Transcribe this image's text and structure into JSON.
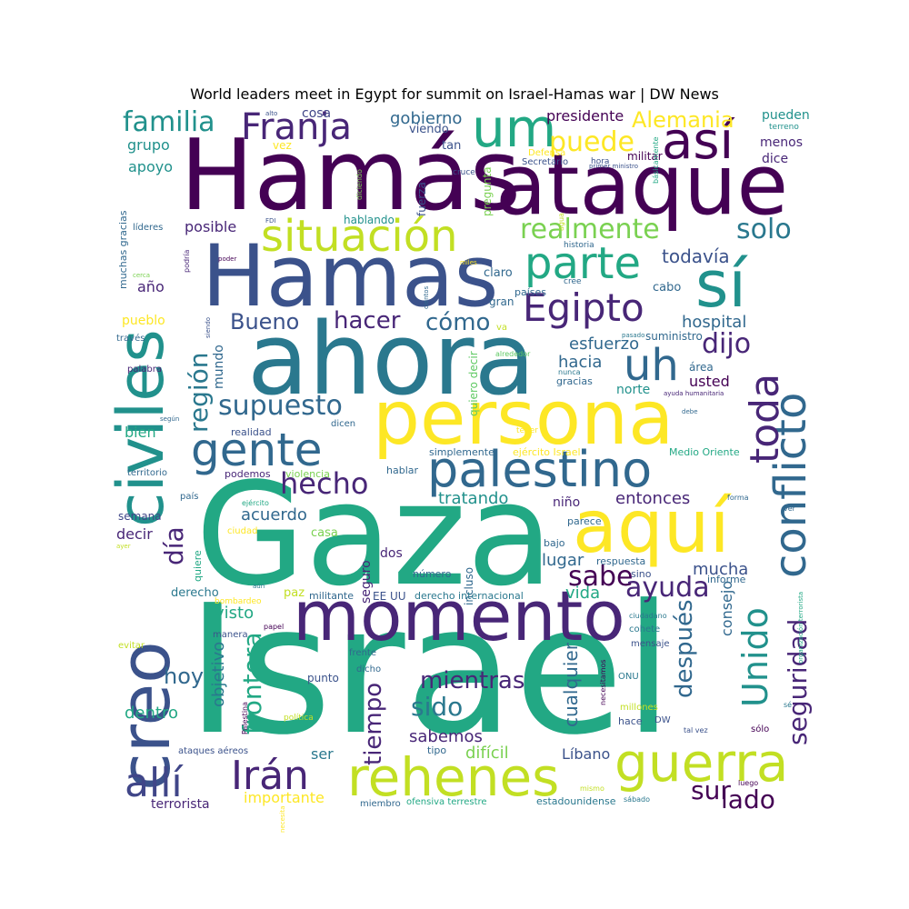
{
  "title": "World leaders meet in Egypt for summit on Israel-Hamas war | DW News",
  "words": [
    "Israel",
    "Gaza",
    "Hamás",
    "ataque",
    "Hamas",
    "ahora",
    "persona",
    "civiles",
    "creo",
    "momento",
    "aquí",
    "palestino",
    "gente",
    "rehenes",
    "guerra",
    "conflicto",
    "sí",
    "um",
    "así",
    "situación",
    "Franja",
    "parte",
    "Egipto",
    "uh",
    "toda",
    "Unido",
    "allí",
    "Irán",
    "familia",
    "puede",
    "realmente",
    "supuesto",
    "hecho",
    "seguridad",
    "región",
    "solo",
    "dijo",
    "Alemania",
    "cómo",
    "hacer",
    "Bueno",
    "sabe",
    "ayuda",
    "frontera",
    "después",
    "mientras",
    "sido",
    "tiempo",
    "día",
    "hoy",
    "sur",
    "lado",
    "gobierno",
    "presidente",
    "todavía",
    "hospital",
    "esfuerzo",
    "hacia",
    "tratando",
    "acuerdo",
    "entonces",
    "mucha",
    "vida",
    "lugar",
    "cualquier",
    "sabemos",
    "difícil",
    "Líbano",
    "consejo",
    "dentro",
    "visto",
    "objetivo",
    "ser",
    "importante",
    "terrorista",
    "grupo",
    "apoyo",
    "posible",
    "año",
    "pueblo",
    "bien",
    "decir",
    "mundo",
    "norte",
    "usted",
    "menos",
    "dice",
    "pueden",
    "militar",
    "Defensa",
    "Secretario",
    "viendo",
    "tan",
    "cosa",
    "vez",
    "hablando",
    "fuerza",
    "pregunta",
    "claro",
    "países",
    "gran",
    "cabo",
    "suministro",
    "área",
    "gracias",
    "nunca",
    "alrededor",
    "quiero decir",
    "dicen",
    "realidad",
    "simplemente",
    "ejército Israel",
    "Medio Oriente",
    "hablar",
    "podemos",
    "violencia",
    "niño",
    "parece",
    "bajo",
    "respuesta",
    "sino",
    "informe",
    "número",
    "incluso",
    "seguro",
    "dos",
    "casa",
    "derecho internacional",
    "EE UU",
    "militante",
    "paz",
    "derecho",
    "bombardeo",
    "papel",
    "ciudadano",
    "cohete",
    "mensaje",
    "frente",
    "dicho",
    "punto",
    "necesitamos",
    "ONU",
    "millones",
    "hace",
    "DW",
    "política",
    "tipo",
    "ataques aéreos",
    "ofensiva terrestre",
    "miembro",
    "estadounidense",
    "sábado",
    "mismo",
    "luego",
    "tal vez",
    "sólo",
    "ver",
    "forma",
    "sé",
    "necesita",
    "manera",
    "evitar",
    "Palestina",
    "ayer",
    "aún",
    "quiere",
    "ciudad",
    "ejército",
    "semana",
    "país",
    "territorio",
    "según",
    "palabra",
    "través",
    "muchas gracias",
    "líderes",
    "FDI",
    "poder",
    "podría",
    "cerca",
    "historia",
    "miles",
    "cientos",
    "cree",
    "pasado",
    "hora",
    "cruce",
    "agua",
    "primer ministro",
    "básicamente",
    "terreno",
    "ayuda humanitaria",
    "debe",
    "tener",
    "organización terrorista",
    "alto",
    "diciendo",
    "va",
    "siendo"
  ]
}
